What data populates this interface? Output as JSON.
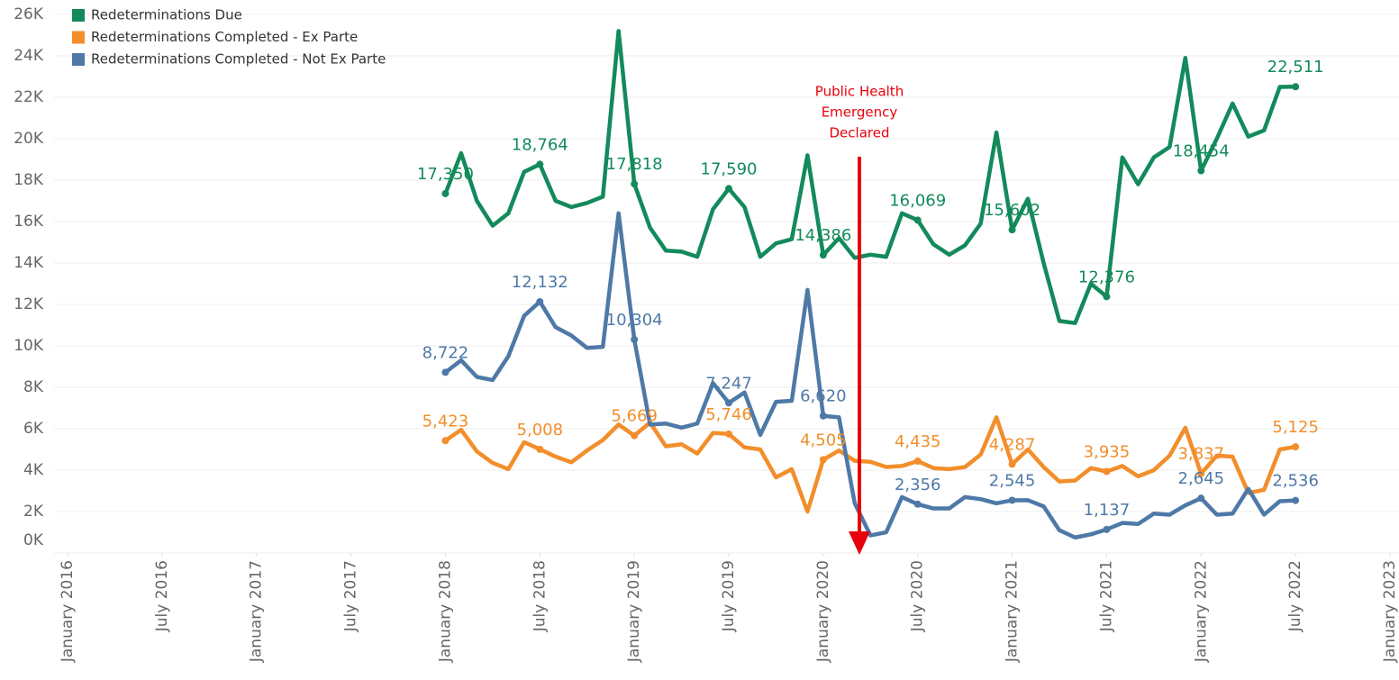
{
  "chart_data": {
    "type": "line",
    "x": [
      "2018-01",
      "2018-02",
      "2018-03",
      "2018-04",
      "2018-05",
      "2018-06",
      "2018-07",
      "2018-08",
      "2018-09",
      "2018-10",
      "2018-11",
      "2018-12",
      "2019-01",
      "2019-02",
      "2019-03",
      "2019-04",
      "2019-05",
      "2019-06",
      "2019-07",
      "2019-08",
      "2019-09",
      "2019-10",
      "2019-11",
      "2019-12",
      "2020-01",
      "2020-02",
      "2020-03",
      "2020-04",
      "2020-05",
      "2020-06",
      "2020-07",
      "2020-08",
      "2020-09",
      "2020-10",
      "2020-11",
      "2020-12",
      "2021-01",
      "2021-02",
      "2021-03",
      "2021-04",
      "2021-05",
      "2021-06",
      "2021-07",
      "2021-08",
      "2021-09",
      "2021-10",
      "2021-11",
      "2021-12",
      "2022-01",
      "2022-02",
      "2022-03",
      "2022-04",
      "2022-05",
      "2022-06",
      "2022-07"
    ],
    "series": [
      {
        "name": "Redeterminations Due",
        "color": "#138a5b",
        "values": [
          17350,
          19300,
          17000,
          15800,
          16400,
          18400,
          18764,
          17000,
          16700,
          16900,
          17200,
          25200,
          17818,
          15700,
          14600,
          14550,
          14300,
          16600,
          17590,
          16700,
          14300,
          14950,
          15150,
          19200,
          14386,
          15200,
          14250,
          14400,
          14300,
          16400,
          16069,
          14900,
          14400,
          14850,
          15900,
          20300,
          15602,
          17100,
          14000,
          11200,
          11100,
          13000,
          12376,
          19100,
          17800,
          19100,
          19600,
          23900,
          18454,
          20000,
          21700,
          20100,
          20400,
          22500,
          22511
        ],
        "value_labels": [
          "17,350",
          null,
          null,
          null,
          null,
          null,
          "18,764",
          null,
          null,
          null,
          null,
          null,
          "17,818",
          null,
          null,
          null,
          null,
          null,
          "17,590",
          null,
          null,
          null,
          null,
          null,
          "14,386",
          null,
          null,
          null,
          null,
          null,
          "16,069",
          null,
          null,
          null,
          null,
          null,
          "15,602",
          null,
          null,
          null,
          null,
          null,
          "12,376",
          null,
          null,
          null,
          null,
          null,
          "18,454",
          null,
          null,
          null,
          null,
          null,
          "22,511"
        ]
      },
      {
        "name": "Redeterminations Completed - Ex Parte",
        "color": "#f28e2b",
        "values": [
          5423,
          5950,
          4900,
          4350,
          4050,
          5350,
          5008,
          4650,
          4380,
          4950,
          5450,
          6200,
          5669,
          6300,
          5150,
          5250,
          4800,
          5800,
          5746,
          5100,
          5000,
          3650,
          4050,
          2000,
          4505,
          4950,
          4450,
          4400,
          4150,
          4200,
          4435,
          4100,
          4050,
          4150,
          4750,
          6550,
          4287,
          5000,
          4150,
          3450,
          3500,
          4100,
          3935,
          4200,
          3700,
          4000,
          4700,
          6050,
          3837,
          4700,
          4650,
          2900,
          3050,
          5000,
          5125
        ],
        "value_labels": [
          "5,423",
          null,
          null,
          null,
          null,
          null,
          "5,008",
          null,
          null,
          null,
          null,
          null,
          "5,669",
          null,
          null,
          null,
          null,
          null,
          "5,746",
          null,
          null,
          null,
          null,
          null,
          "4,505",
          null,
          null,
          null,
          null,
          null,
          "4,435",
          null,
          null,
          null,
          null,
          null,
          "4,287",
          null,
          null,
          null,
          null,
          null,
          "3,935",
          null,
          null,
          null,
          null,
          null,
          "3,837",
          null,
          null,
          null,
          null,
          null,
          "5,125"
        ]
      },
      {
        "name": "Redeterminations Completed - Not Ex Parte",
        "color": "#4e79a7",
        "values": [
          8722,
          9300,
          8500,
          8350,
          9500,
          11450,
          12132,
          10900,
          10500,
          9900,
          9950,
          16400,
          10304,
          6200,
          6250,
          6050,
          6250,
          8200,
          7247,
          7750,
          5700,
          7300,
          7350,
          12700,
          6620,
          6550,
          2400,
          850,
          1000,
          2700,
          2356,
          2150,
          2150,
          2700,
          2600,
          2400,
          2545,
          2550,
          2250,
          1100,
          750,
          900,
          1137,
          1450,
          1400,
          1900,
          1850,
          2300,
          2645,
          1850,
          1900,
          3100,
          1850,
          2500,
          2536
        ],
        "value_labels": [
          "8,722",
          null,
          null,
          null,
          null,
          null,
          "12,132",
          null,
          null,
          null,
          null,
          null,
          "10,304",
          null,
          null,
          null,
          null,
          null,
          "7,247",
          null,
          null,
          null,
          null,
          null,
          "6,620",
          null,
          null,
          null,
          null,
          null,
          "2,356",
          null,
          null,
          null,
          null,
          null,
          "2,545",
          null,
          null,
          null,
          null,
          null,
          "1,137",
          null,
          null,
          null,
          null,
          null,
          "2,645",
          null,
          null,
          null,
          null,
          null,
          "2,536"
        ]
      }
    ],
    "xlim": [
      "2016-01",
      "2023-01"
    ],
    "xticks": [
      {
        "value": "2016-01",
        "label": "January 2016"
      },
      {
        "value": "2016-07",
        "label": "July 2016"
      },
      {
        "value": "2017-01",
        "label": "January 2017"
      },
      {
        "value": "2017-07",
        "label": "July 2017"
      },
      {
        "value": "2018-01",
        "label": "January 2018"
      },
      {
        "value": "2018-07",
        "label": "July 2018"
      },
      {
        "value": "2019-01",
        "label": "January 2019"
      },
      {
        "value": "2019-07",
        "label": "July 2019"
      },
      {
        "value": "2020-01",
        "label": "January 2020"
      },
      {
        "value": "2020-07",
        "label": "July 2020"
      },
      {
        "value": "2021-01",
        "label": "January 2021"
      },
      {
        "value": "2021-07",
        "label": "July 2021"
      },
      {
        "value": "2022-01",
        "label": "January 2022"
      },
      {
        "value": "2022-07",
        "label": "July 2022"
      },
      {
        "value": "2023-01",
        "label": "January 2023"
      }
    ],
    "ylim": [
      0,
      26000
    ],
    "yticks": [
      {
        "value": 0,
        "label": "0K"
      },
      {
        "value": 2000,
        "label": "2K"
      },
      {
        "value": 4000,
        "label": "4K"
      },
      {
        "value": 6000,
        "label": "6K"
      },
      {
        "value": 8000,
        "label": "8K"
      },
      {
        "value": 10000,
        "label": "10K"
      },
      {
        "value": 12000,
        "label": "12K"
      },
      {
        "value": 14000,
        "label": "14K"
      },
      {
        "value": 16000,
        "label": "16K"
      },
      {
        "value": 18000,
        "label": "18K"
      },
      {
        "value": 20000,
        "label": "20K"
      },
      {
        "value": 22000,
        "label": "22K"
      },
      {
        "value": 24000,
        "label": "24K"
      },
      {
        "value": 26000,
        "label": "26K"
      }
    ],
    "grid": true,
    "legend": "top-left",
    "annotation": [
      "Public Health",
      "Emergency",
      "Declared"
    ]
  }
}
